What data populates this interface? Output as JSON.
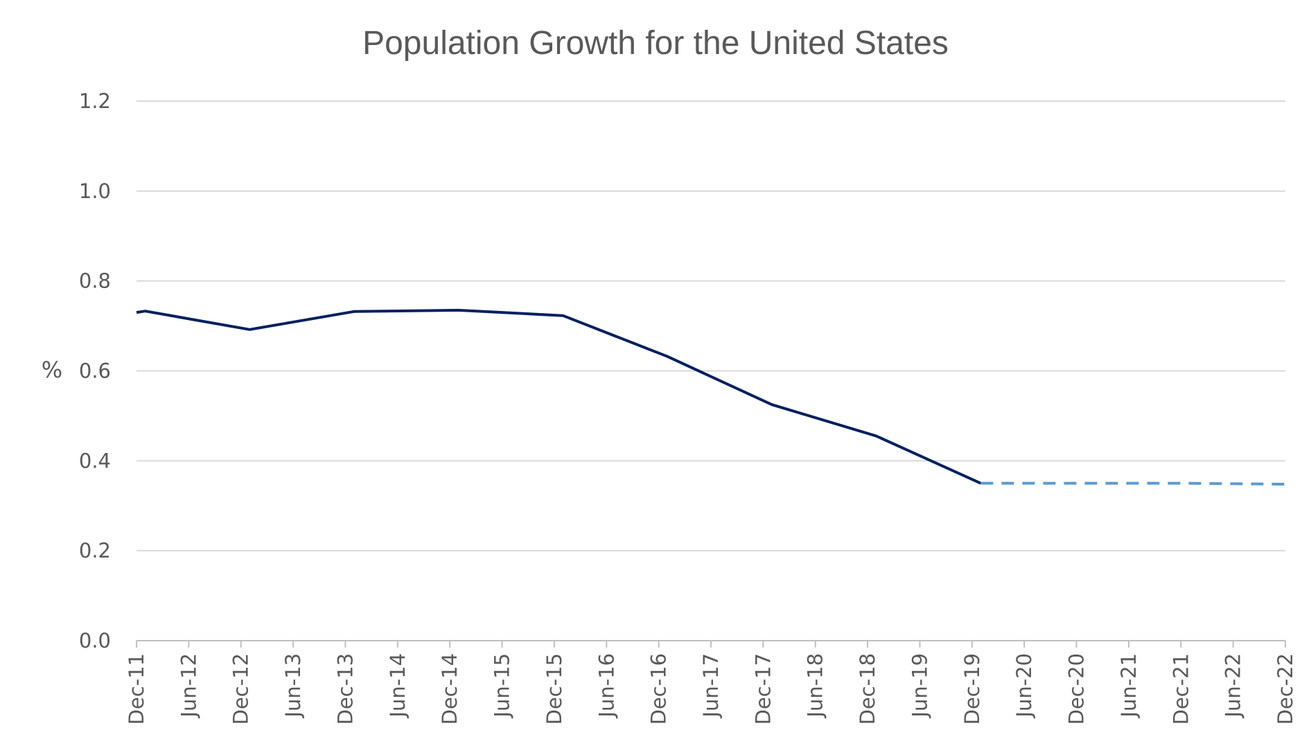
{
  "chart_data": {
    "type": "line",
    "title": "Population Growth for the United States",
    "xlabel": "",
    "ylabel": "%",
    "ylim": [
      0,
      1.2
    ],
    "yticks": [
      "0.0",
      "0.2",
      "0.4",
      "0.6",
      "0.8",
      "1.0",
      "1.2"
    ],
    "xticks": [
      "Dec-11",
      "Jun-12",
      "Dec-12",
      "Jun-13",
      "Dec-13",
      "Jun-14",
      "Dec-14",
      "Jun-15",
      "Dec-15",
      "Jun-16",
      "Dec-16",
      "Jun-17",
      "Dec-17",
      "Jun-18",
      "Dec-18",
      "Jun-19",
      "Dec-19",
      "Jun-20",
      "Dec-20",
      "Jun-21",
      "Dec-21",
      "Jun-22",
      "Dec-22"
    ],
    "grid": true,
    "series": [
      {
        "style": "solid",
        "color": "#002060",
        "x": [
          "2011-12",
          "2012-01",
          "2013-01",
          "2014-01",
          "2015-01",
          "2016-01",
          "2017-01",
          "2018-01",
          "2019-01",
          "2020-01"
        ],
        "values": [
          0.73,
          0.733,
          0.692,
          0.732,
          0.735,
          0.723,
          0.632,
          0.525,
          0.455,
          0.35
        ]
      },
      {
        "style": "dashed",
        "color": "#5b9bd5",
        "x": [
          "2020-01",
          "2021-01",
          "2022-01",
          "2022-12"
        ],
        "values": [
          0.35,
          0.35,
          0.35,
          0.348
        ]
      }
    ]
  }
}
